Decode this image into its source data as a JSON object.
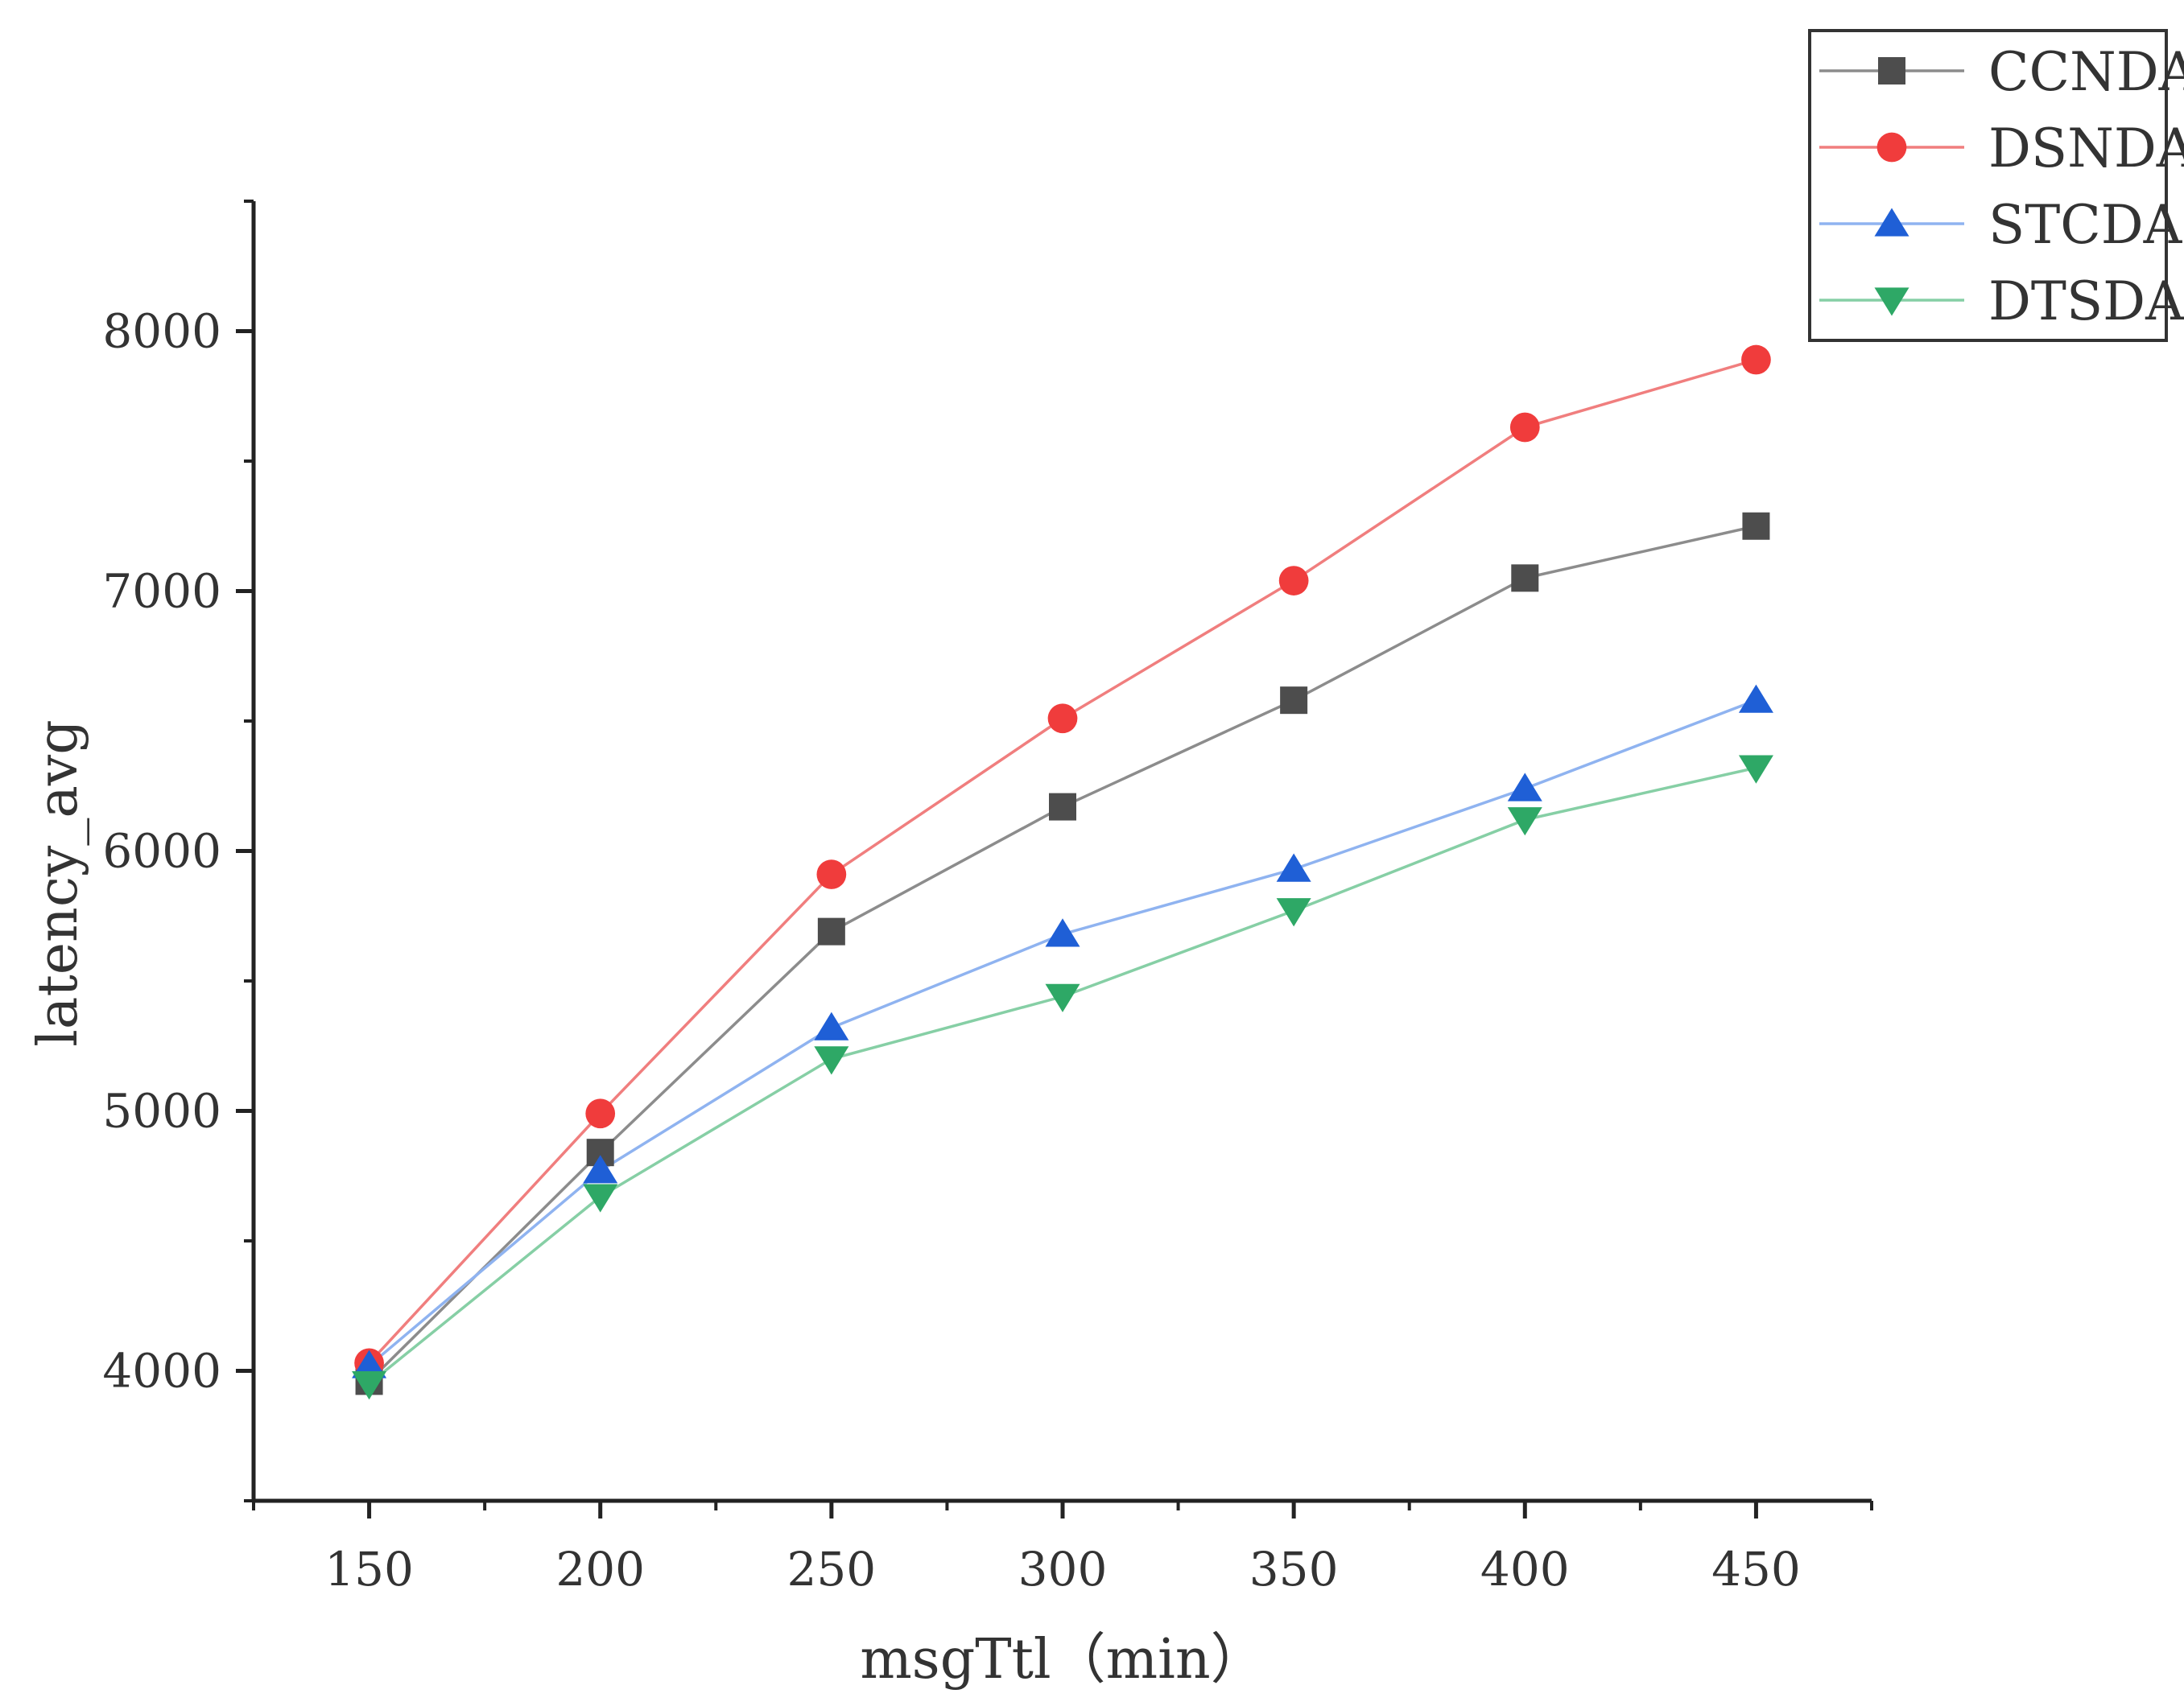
{
  "chart_data": {
    "type": "line",
    "title": "",
    "xlabel": "msgTtl（min）",
    "ylabel": "latency_avg",
    "x": [
      150,
      200,
      250,
      300,
      350,
      400,
      450
    ],
    "xlim": [
      125,
      475
    ],
    "ylim": [
      3500,
      8500
    ],
    "x_ticks": [
      150,
      200,
      250,
      300,
      350,
      400,
      450
    ],
    "y_ticks": [
      4000,
      5000,
      6000,
      7000,
      8000
    ],
    "grid": false,
    "legend_position": "top-right",
    "series": [
      {
        "name": "CCNDA",
        "marker": "square",
        "color": "#4d4d4d",
        "line_color": "#8c8c8c",
        "values": [
          3960,
          4840,
          5690,
          6170,
          6580,
          7050,
          7250
        ]
      },
      {
        "name": "DSNDA",
        "marker": "circle",
        "color": "#f03c3c",
        "line_color": "#f07e7e",
        "values": [
          4030,
          4990,
          5910,
          6510,
          7040,
          7630,
          7890
        ]
      },
      {
        "name": "STCDA",
        "marker": "triangle-up",
        "color": "#1f5fd6",
        "line_color": "#8fb3f0",
        "values": [
          4020,
          4770,
          5320,
          5680,
          5930,
          6240,
          6580
        ]
      },
      {
        "name": "DTSDA",
        "marker": "triangle-down",
        "color": "#2ea866",
        "line_color": "#86cfa5",
        "values": [
          3950,
          4670,
          5200,
          5440,
          5770,
          6120,
          6320
        ]
      }
    ]
  }
}
